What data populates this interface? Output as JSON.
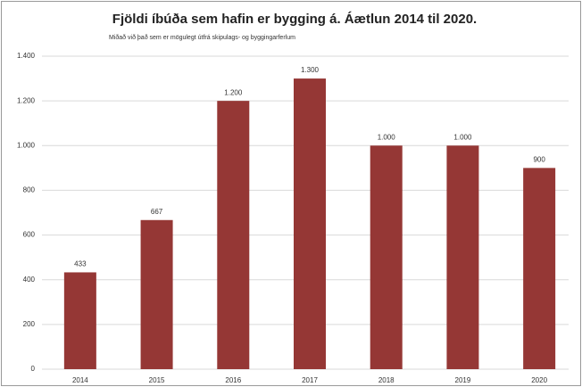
{
  "chart_data": {
    "type": "bar",
    "title": "Fjöldi íbúða sem hafin er bygging á. Áætlun 2014 til 2020.",
    "subtitle": "Miðað við það sem er mögulegt útfrá skipulags- og byggingarferlum",
    "categories": [
      "2014",
      "2015",
      "2016",
      "2017",
      "2018",
      "2019",
      "2020"
    ],
    "values": [
      433,
      667,
      1200,
      1300,
      1000,
      1000,
      900
    ],
    "value_labels": [
      "433",
      "667",
      "1.200",
      "1.300",
      "1.000",
      "1.000",
      "900"
    ],
    "color": "#953735",
    "ylim": [
      0,
      1400
    ],
    "yticks": [
      0,
      200,
      400,
      600,
      800,
      {
        "value": 1000,
        "label": "1.000"
      },
      {
        "value": 1200,
        "label": "1.200"
      },
      {
        "value": 1400,
        "label": "1.400"
      }
    ],
    "grid": true
  }
}
